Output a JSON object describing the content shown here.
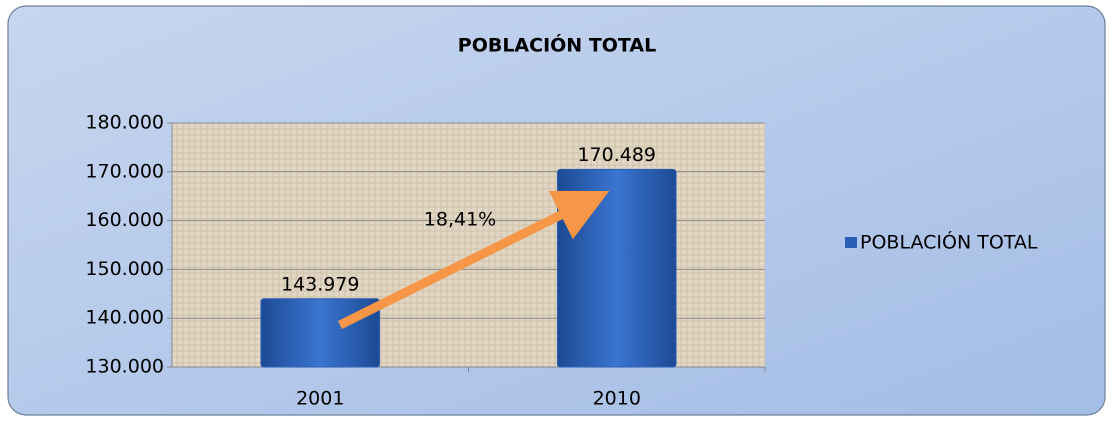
{
  "chart_data": {
    "type": "bar",
    "title": "POBLACIÓN TOTAL",
    "categories": [
      "2001",
      "2010"
    ],
    "series": [
      {
        "name": "POBLACIÓN TOTAL",
        "color": "#2a5fb5",
        "values": [
          143979,
          170489
        ],
        "value_labels": [
          "143.979",
          "170.489"
        ]
      }
    ],
    "ylim": [
      130000,
      180000
    ],
    "yticks": [
      {
        "value": 130000,
        "label": "130.000"
      },
      {
        "value": 140000,
        "label": "140.000"
      },
      {
        "value": 150000,
        "label": "150.000"
      },
      {
        "value": 160000,
        "label": "160.000"
      },
      {
        "value": 170000,
        "label": "170.000"
      },
      {
        "value": 180000,
        "label": "180.000"
      }
    ],
    "grid": true,
    "legend": "right",
    "annotations": [
      "18,41%"
    ]
  }
}
